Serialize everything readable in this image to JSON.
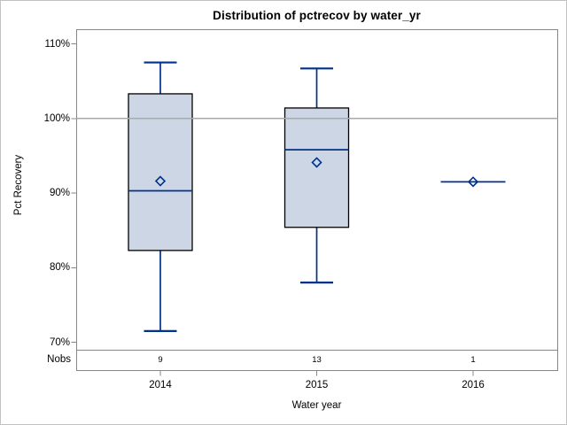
{
  "colors": {
    "box_fill": "#ccd6e4",
    "box_border": "#000000",
    "line_blue": "#00318c",
    "frame_gray": "#878787",
    "ref_gray": "#a9a9a9",
    "outer_border": "#c2c2c2"
  },
  "chart_data": {
    "type": "boxplot",
    "title": "Distribution of pctrecov by water_yr",
    "xlabel": "Water year",
    "ylabel": "Pct Recovery",
    "nobs_label": "Nobs",
    "ylim": [
      70,
      110
    ],
    "yticks": [
      110,
      100,
      90,
      80,
      70
    ],
    "ytick_format": "percent",
    "reference_line": 100,
    "grid": "off",
    "legend": "none",
    "categories": [
      "2014",
      "2015",
      "2016"
    ],
    "nobs": [
      9,
      13,
      1
    ],
    "series": [
      {
        "category": "2014",
        "n": 9,
        "min": 71.5,
        "q1": 82.3,
        "median": 90.3,
        "mean": 91.6,
        "q3": 103.3,
        "max": 107.5
      },
      {
        "category": "2015",
        "n": 13,
        "min": 78.0,
        "q1": 85.4,
        "median": 95.8,
        "mean": 94.1,
        "q3": 101.4,
        "max": 106.7
      },
      {
        "category": "2016",
        "n": 1,
        "min": 91.5,
        "q1": 91.5,
        "median": 91.5,
        "mean": 91.5,
        "q3": 91.5,
        "max": 91.5
      }
    ]
  }
}
